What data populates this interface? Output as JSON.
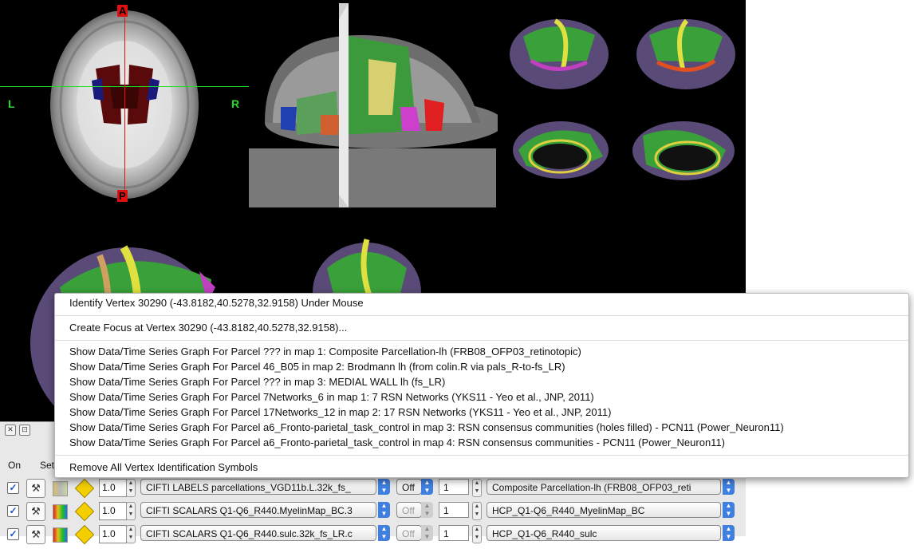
{
  "orientation": {
    "anterior": "A",
    "posterior": "P",
    "left": "L",
    "right": "R"
  },
  "context_menu": {
    "items": [
      "Identify Vertex 30290 (-43.8182,40.5278,32.9158) Under Mouse",
      "Create Focus at Vertex 30290 (-43.8182,40.5278,32.9158)...",
      "Show Data/Time Series Graph For Parcel ??? in map 1: Composite Parcellation-lh (FRB08_OFP03_retinotopic)",
      "Show Data/Time Series Graph For Parcel 46_B05 in map 2: Brodmann lh (from colin.R via pals_R-to-fs_LR)",
      "Show Data/Time Series Graph For Parcel ??? in map 3: MEDIAL WALL lh (fs_LR)",
      "Show Data/Time Series Graph For Parcel 7Networks_6 in map 1: 7 RSN Networks (YKS11 - Yeo et al., JNP, 2011)",
      "Show Data/Time Series Graph For Parcel 17Networks_12 in map 2: 17 RSN Networks (YKS11 - Yeo et al., JNP, 2011)",
      "Show Data/Time Series Graph For Parcel a6_Fronto-parietal_task_control in map 3: RSN consensus communities (holes filled) - PCN11 (Power_Neuron11)",
      "Show Data/Time Series Graph For Parcel a6_Fronto-parietal_task_control in map 4: RSN consensus communities - PCN11 (Power_Neuron11)",
      "Remove All Vertex Identification Symbols"
    ]
  },
  "toolbox": {
    "headers": {
      "on": "On",
      "settings": "Set"
    },
    "layers": [
      {
        "checked": true,
        "opacity": "1.0",
        "file": "CIFTI LABELS parcellations_VGD11b.L.32k_fs_",
        "overlay": "Off",
        "map_index": "1",
        "map_name": "Composite Parcellation-lh (FRB08_OFP03_reti",
        "overlay_enabled": true
      },
      {
        "checked": true,
        "opacity": "1.0",
        "file": "CIFTI SCALARS Q1-Q6_R440.MyelinMap_BC.3",
        "overlay": "Off",
        "map_index": "1",
        "map_name": "HCP_Q1-Q6_R440_MyelinMap_BC",
        "overlay_enabled": false
      },
      {
        "checked": true,
        "opacity": "1.0",
        "file": "CIFTI SCALARS Q1-Q6_R440.sulc.32k_fs_LR.c",
        "overlay": "Off",
        "map_index": "1",
        "map_name": "HCP_Q1-Q6_R440_sulc",
        "overlay_enabled": false
      }
    ]
  },
  "icons": {
    "check": "checkmark-icon",
    "wrench": "wrench-icon",
    "palette": "color-bar-icon",
    "yellow": "yellow-diamond-icon",
    "close": "close-icon",
    "restore": "restore-icon"
  },
  "colors": {
    "accent": "#3f7fe0",
    "crosshair_green": "#22dd22",
    "crosshair_red": "#e01010",
    "background": "#000000"
  }
}
